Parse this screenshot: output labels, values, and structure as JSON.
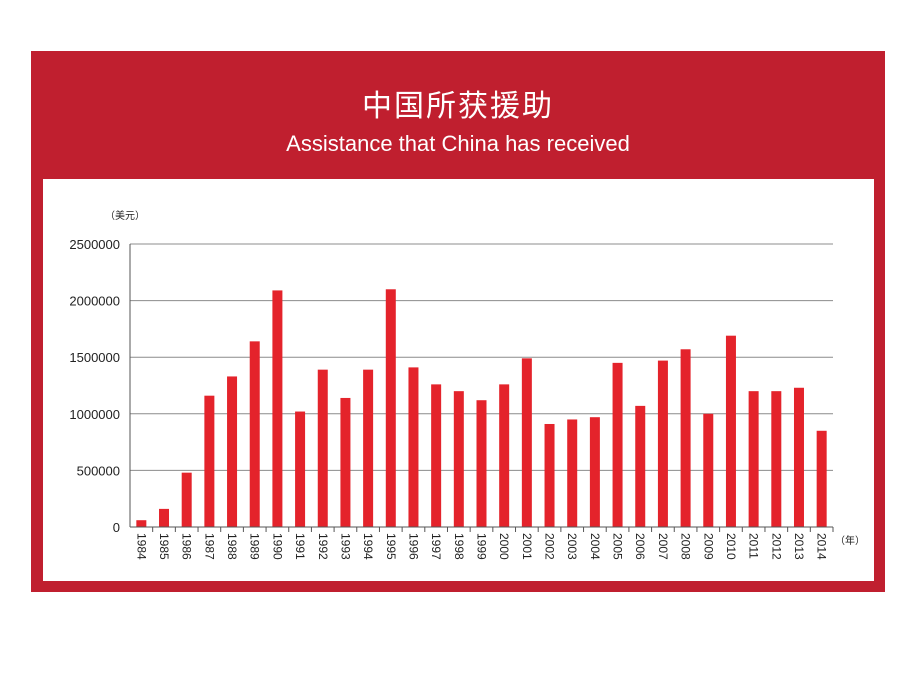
{
  "header": {
    "title_cn": "中国所获援助",
    "title_en": "Assistance that China has received"
  },
  "colors": {
    "frame": "#c01f2f",
    "bar": "#e4232b",
    "grid": "#8c8c8c"
  },
  "chart_data": {
    "type": "bar",
    "title": "中国所获援助",
    "subtitle": "Assistance that China has received",
    "ylabel": "（美元）",
    "xlabel": "（年）",
    "ylim": [
      0,
      2500000
    ],
    "yticks": [
      0,
      500000,
      1000000,
      1500000,
      2000000,
      2500000
    ],
    "grid": true,
    "categories": [
      "1984",
      "1985",
      "1986",
      "1987",
      "1988",
      "1989",
      "1990",
      "1991",
      "1992",
      "1993",
      "1994",
      "1995",
      "1996",
      "1997",
      "1998",
      "1999",
      "2000",
      "2001",
      "2002",
      "2003",
      "2004",
      "2005",
      "2006",
      "2007",
      "2008",
      "2009",
      "2010",
      "2011",
      "2012",
      "2013",
      "2014"
    ],
    "values": [
      60000,
      160000,
      480000,
      1160000,
      1330000,
      1640000,
      2090000,
      1020000,
      1390000,
      1140000,
      1390000,
      2100000,
      1410000,
      1260000,
      1200000,
      1120000,
      1260000,
      1490000,
      910000,
      950000,
      970000,
      1450000,
      1070000,
      1470000,
      1570000,
      1000000,
      1690000,
      1200000,
      1200000,
      1230000,
      850000
    ]
  }
}
